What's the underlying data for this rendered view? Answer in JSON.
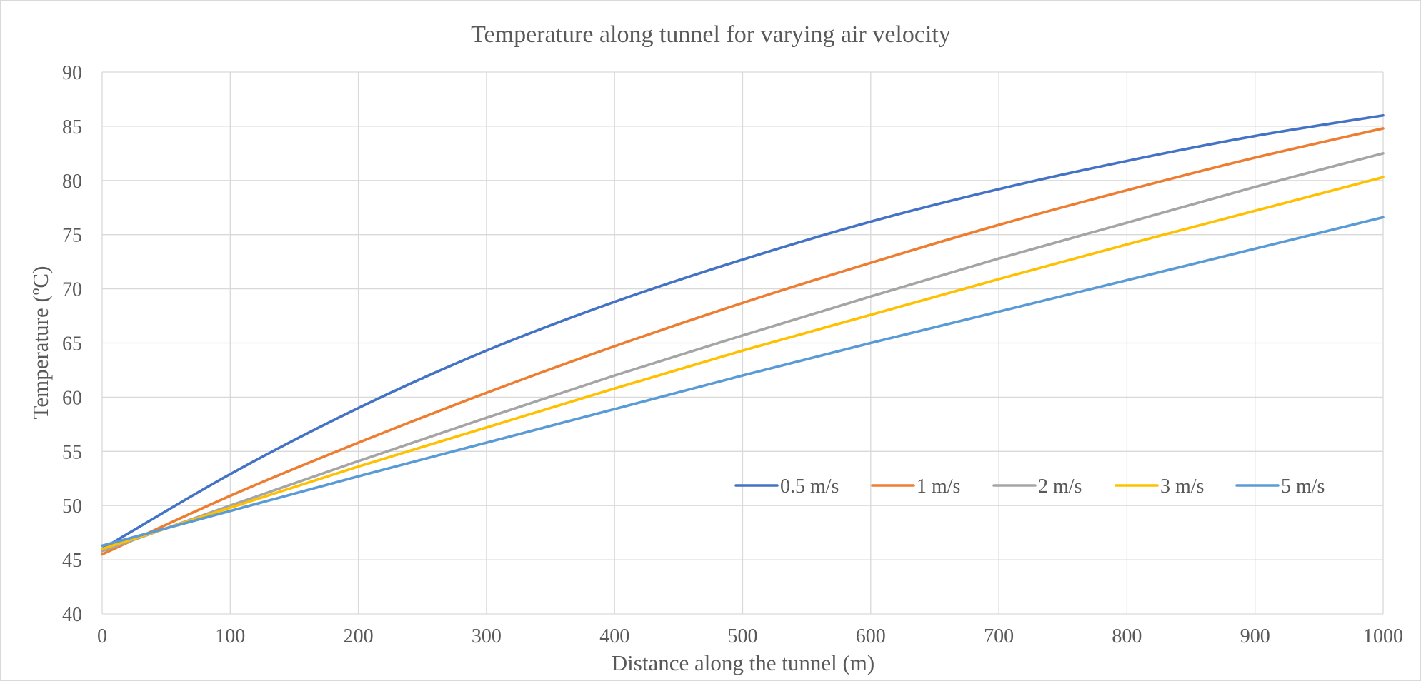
{
  "chart_data": {
    "type": "line",
    "title": "Temperature along tunnel for varying air velocity",
    "xlabel": "Distance along the tunnel (m)",
    "ylabel": "Temperature (ºC)",
    "xlim": [
      0,
      1000
    ],
    "ylim": [
      40,
      90
    ],
    "x_ticks": [
      0,
      100,
      200,
      300,
      400,
      500,
      600,
      700,
      800,
      900,
      1000
    ],
    "y_ticks": [
      40,
      45,
      50,
      55,
      60,
      65,
      70,
      75,
      80,
      85,
      90
    ],
    "grid": true,
    "legend": "inside-lower-right",
    "x": [
      0,
      100,
      200,
      300,
      400,
      500,
      600,
      700,
      800,
      900,
      1000
    ],
    "series": [
      {
        "name": "0.5 m/s",
        "color": "#4472c4",
        "values": [
          46.0,
          52.9,
          59.0,
          64.3,
          68.8,
          72.7,
          76.2,
          79.2,
          81.8,
          84.1,
          86.0
        ]
      },
      {
        "name": "1 m/s",
        "color": "#ed7d31",
        "values": [
          45.5,
          50.9,
          55.8,
          60.4,
          64.7,
          68.7,
          72.4,
          75.9,
          79.1,
          82.1,
          84.8
        ]
      },
      {
        "name": "2 m/s",
        "color": "#a5a5a5",
        "values": [
          45.8,
          50.0,
          54.1,
          58.1,
          62.0,
          65.7,
          69.3,
          72.8,
          76.1,
          79.4,
          82.5
        ]
      },
      {
        "name": "3 m/s",
        "color": "#ffc000",
        "values": [
          46.0,
          49.8,
          53.6,
          57.2,
          60.8,
          64.3,
          67.6,
          70.9,
          74.1,
          77.2,
          80.3
        ]
      },
      {
        "name": "5 m/s",
        "color": "#5b9bd5",
        "values": [
          46.3,
          49.5,
          52.7,
          55.8,
          58.9,
          62.0,
          65.0,
          67.9,
          70.8,
          73.7,
          76.6
        ]
      }
    ]
  }
}
